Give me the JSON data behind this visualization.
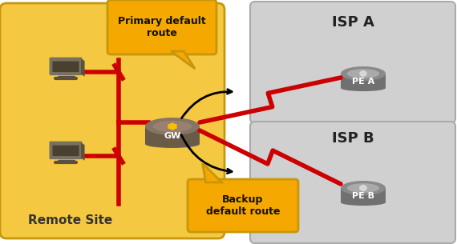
{
  "bg_color": "#ffffff",
  "remote_site_bg": "#f5c842",
  "remote_site_border": "#c8960c",
  "isp_bg": "#d0d0d0",
  "isp_border": "#aaaaaa",
  "remote_site_label": "Remote Site",
  "isp_a_label": "ISP A",
  "isp_b_label": "ISP B",
  "gw_label": "GW",
  "pe_a_label": "PE A",
  "pe_b_label": "PE B",
  "primary_label": "Primary default\nroute",
  "backup_label": "Backup\ndefault route",
  "callout_bg": "#f5a800",
  "callout_border": "#c8960c",
  "red_line": "#cc0000",
  "gw_body_dark": "#5a5040",
  "gw_body_mid": "#706050",
  "gw_body_light": "#857060",
  "gw_top_dark": "#756555",
  "gw_top_light": "#908070",
  "gw_arrow_color": "#f5c000",
  "pe_body_dark": "#606060",
  "pe_body_mid": "#808080",
  "pe_top_light": "#a0a0a0",
  "pe_arrow_color": "#d8d8d8",
  "monitor_color": "#7a7060",
  "monitor_dark": "#4a4030"
}
